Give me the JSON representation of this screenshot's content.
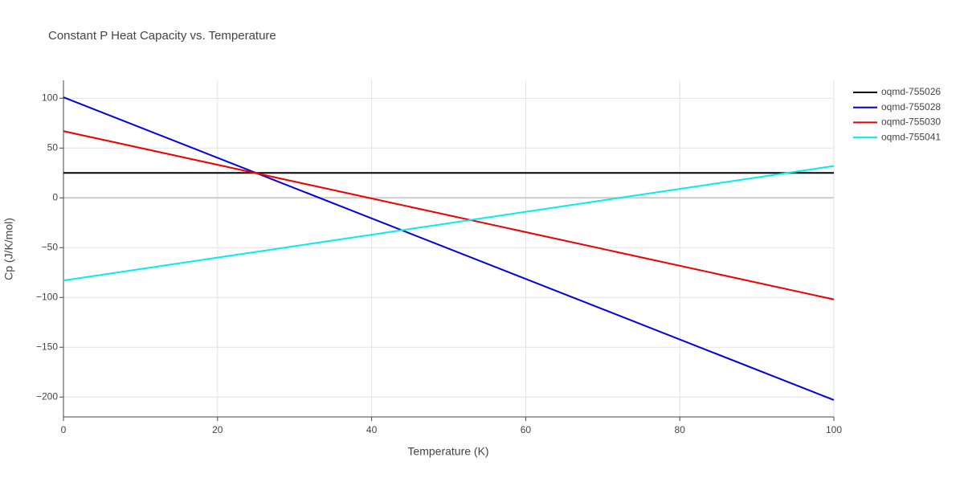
{
  "chart_data": {
    "type": "line",
    "title": "Constant P Heat Capacity vs. Temperature",
    "x_label": "Temperature (K)",
    "y_label": "Cp (J/K/mol)",
    "x": [
      0,
      100
    ],
    "series": [
      {
        "name": "oqmd-755026",
        "color": "#000000",
        "values": [
          25,
          25
        ]
      },
      {
        "name": "oqmd-755028",
        "color": "#0000dd",
        "values": [
          101,
          -203
        ]
      },
      {
        "name": "oqmd-755030",
        "color": "#ee0000",
        "values": [
          67,
          -102
        ]
      },
      {
        "name": "oqmd-755041",
        "color": "#00eeee",
        "values": [
          -83,
          32
        ]
      }
    ],
    "xlim": [
      0,
      100
    ],
    "xticks": [
      0,
      20,
      40,
      60,
      80,
      100
    ],
    "ylim": [
      -220,
      118
    ],
    "yticks": [
      {
        "value": -200,
        "label": "−200"
      },
      {
        "value": -150,
        "label": "−150"
      },
      {
        "value": -100,
        "label": "−100"
      },
      {
        "value": -50,
        "label": "−50"
      },
      0,
      50,
      100
    ],
    "grid": true,
    "legend": "right"
  }
}
